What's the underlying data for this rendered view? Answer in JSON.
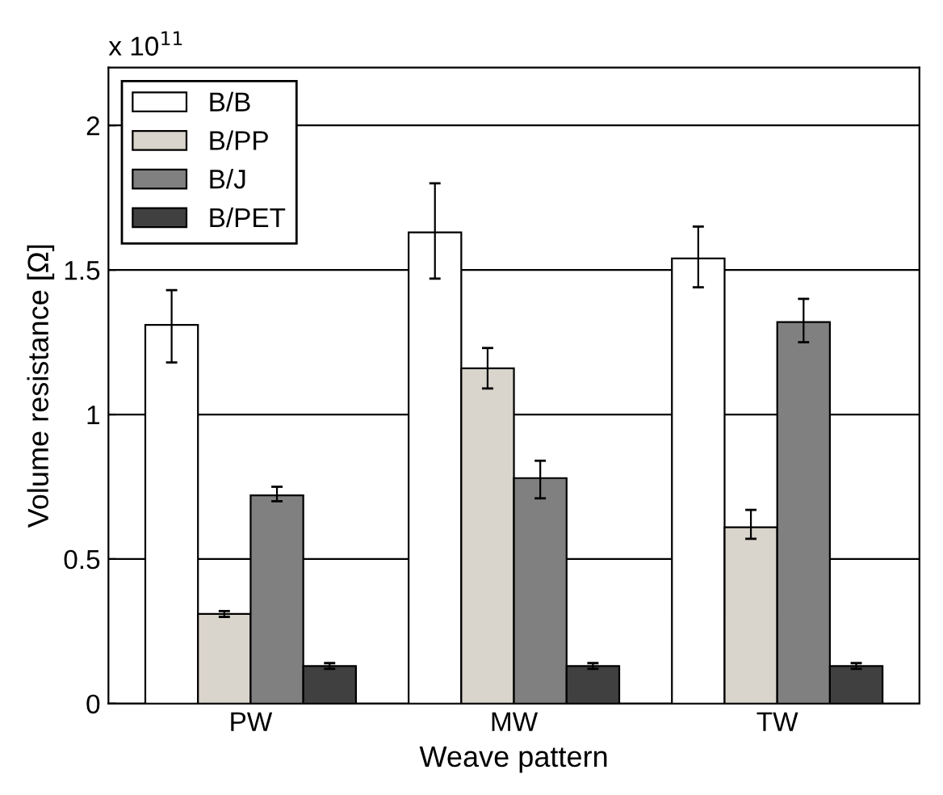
{
  "chart_data": {
    "type": "bar",
    "xlabel": "Weave pattern",
    "ylabel": "Volume resistance [Ω]",
    "categories": [
      "PW",
      "MW",
      "TW"
    ],
    "series": [
      {
        "name": "B/B",
        "color": "#ffffff",
        "values": [
          1.31,
          1.63,
          1.54
        ],
        "errors": [
          [
            1.18,
            1.43
          ],
          [
            1.47,
            1.8
          ],
          [
            1.44,
            1.65
          ]
        ]
      },
      {
        "name": "B/PP",
        "color": "#d9d4cc",
        "values": [
          0.31,
          1.16,
          0.61
        ],
        "errors": [
          [
            0.3,
            0.32
          ],
          [
            1.09,
            1.23
          ],
          [
            0.57,
            0.67
          ]
        ]
      },
      {
        "name": "B/J",
        "color": "#808080",
        "values": [
          0.72,
          0.78,
          1.32
        ],
        "errors": [
          [
            0.7,
            0.75
          ],
          [
            0.71,
            0.84
          ],
          [
            1.25,
            1.4
          ]
        ]
      },
      {
        "name": "B/PET",
        "color": "#404040",
        "values": [
          0.13,
          0.13,
          0.13
        ],
        "errors": [
          [
            0.12,
            0.14
          ],
          [
            0.12,
            0.14
          ],
          [
            0.12,
            0.14
          ]
        ]
      }
    ],
    "ylim": [
      0,
      2.2
    ],
    "yticks": [
      0,
      0.5,
      1,
      1.5,
      2
    ],
    "grid": "y",
    "legend": "top left",
    "annotations": [
      "x 10$^{11}$"
    ]
  }
}
